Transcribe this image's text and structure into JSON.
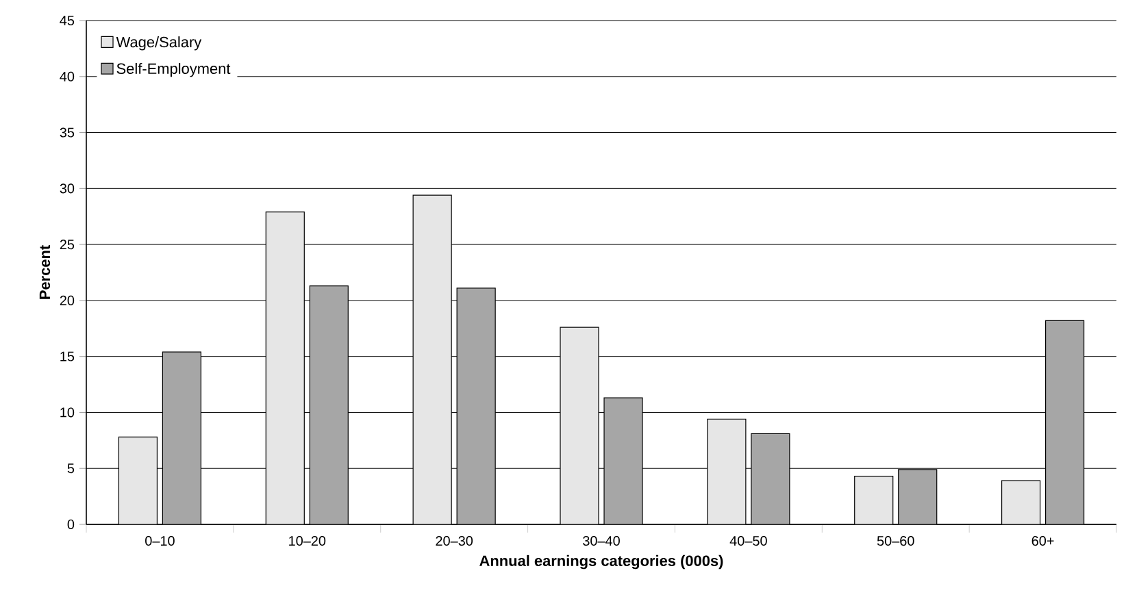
{
  "chart_data": {
    "type": "bar",
    "xlabel": "Annual earnings categories (000s)",
    "ylabel": "Percent",
    "categories": [
      "0–10",
      "10–20",
      "20–30",
      "30–40",
      "40–50",
      "50–60",
      "60+"
    ],
    "series": [
      {
        "name": "Wage/Salary",
        "color": "#e6e6e6",
        "values": [
          7.8,
          27.9,
          29.4,
          17.6,
          9.4,
          4.3,
          3.9
        ]
      },
      {
        "name": "Self-Employment",
        "color": "#a6a6a6",
        "values": [
          15.4,
          21.3,
          21.1,
          11.3,
          8.1,
          4.9,
          18.2
        ]
      }
    ],
    "ylim": [
      0,
      45
    ],
    "yticks": [
      0,
      5,
      10,
      15,
      20,
      25,
      30,
      35,
      40,
      45
    ],
    "grid": "y",
    "legend": "top left"
  }
}
